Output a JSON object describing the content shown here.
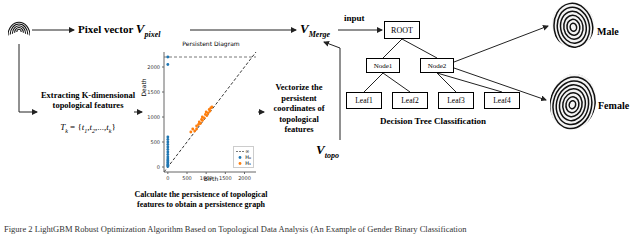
{
  "pixel_vector": {
    "label": "Pixel vector",
    "symbol": "V",
    "subscript": "pixel"
  },
  "merge_vector": {
    "symbol": "V",
    "subscript": "Merge"
  },
  "topo_vector": {
    "symbol": "V",
    "subscript": "topo"
  },
  "input_label": "input",
  "extraction": {
    "label": "Extracting K-dimensional topological features",
    "formula": [
      {
        "text": "T",
        "subscript": "k"
      },
      {
        "text": " = {"
      },
      {
        "text": "t",
        "subscript": "1"
      },
      {
        "text": ","
      },
      {
        "text": "t",
        "subscript": "2"
      },
      {
        "text": ",...,"
      },
      {
        "text": "t",
        "subscript": "k"
      },
      {
        "text": "}"
      }
    ]
  },
  "persistence_caption": "Calculate the persistence of topological features to obtain a persistence graph",
  "vectorize_label": "Vectorize the persistent coordinates of topological features",
  "chart_data": {
    "type": "scatter",
    "title": "Persistent Diagram",
    "x_label": "Birth",
    "y_label": "Death",
    "xlim": [
      -100,
      2300
    ],
    "ylim": [
      -100,
      2300
    ],
    "xticks": [
      0,
      500,
      1000,
      1500,
      2000
    ],
    "yticks": [
      0,
      500,
      1000,
      1500,
      2000
    ],
    "legend": "lower right",
    "series": [
      {
        "name": "∞",
        "type": "line",
        "line_style": "dashed",
        "color": "#555555",
        "values": [
          2200
        ]
      },
      {
        "name": "H₀",
        "type": "scatter",
        "marker": "o",
        "color": "#1f77b4",
        "x": [
          0,
          0,
          0,
          0,
          0,
          0,
          0,
          0,
          0,
          0,
          0,
          0,
          0,
          0,
          0,
          0,
          0,
          0
        ],
        "values": [
          10,
          30,
          50,
          80,
          100,
          130,
          160,
          200,
          250,
          300,
          350,
          400,
          450,
          500,
          550,
          600,
          2050,
          2200
        ]
      },
      {
        "name": "H₁",
        "type": "scatter",
        "marker": "o",
        "color": "#ff7f0e",
        "x": [
          600,
          650,
          700,
          750,
          750,
          800,
          820,
          850,
          880,
          900,
          900,
          950,
          980,
          1000,
          1020,
          1050,
          1080,
          1100,
          1120,
          1150
        ],
        "values": [
          700,
          760,
          720,
          820,
          760,
          850,
          900,
          870,
          950,
          1000,
          930,
          980,
          1050,
          1100,
          1030,
          1080,
          1150,
          1120,
          1180,
          1200
        ]
      }
    ]
  },
  "tree": {
    "title": "Decision Tree Classification",
    "root": "ROOT",
    "nodes": [
      "Node1",
      "Node2"
    ],
    "leaves": [
      "Leaf1",
      "Leaf2",
      "Leaf3",
      "Leaf4"
    ]
  },
  "outputs": [
    "Male",
    "Female"
  ],
  "figure_caption": "Figure 2 LightGBM Robust Optimization Algorithm Based on Topological Data Analysis (An Example of Gender Binary Classification"
}
